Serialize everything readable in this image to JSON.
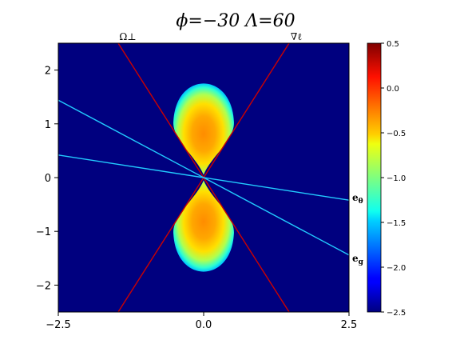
{
  "chart_data": {
    "type": "heatmap",
    "title": "ϕ=−30   Λ=60",
    "xlabel": "",
    "ylabel": "",
    "xlim": [
      -2.5,
      2.5
    ],
    "ylim": [
      -2.5,
      2.5
    ],
    "x_ticks": [
      "−2.5",
      "0.0",
      "2.5"
    ],
    "y_ticks": [
      "−2",
      "−1",
      "0",
      "1",
      "2"
    ],
    "colormap": "jet",
    "colorbar": {
      "range": [
        -2.5,
        0.5
      ],
      "ticks": [
        "0.5",
        "0.0",
        "−0.5",
        "−1.0",
        "−1.5",
        "−2.0",
        "−2.5"
      ]
    },
    "background_value": -2.5,
    "lobes": [
      {
        "center_x": 0.0,
        "center_y": 0.8,
        "peak_value": 0.2,
        "extent_y": [
          0.05,
          1.75
        ],
        "half_width": 0.52
      },
      {
        "center_x": 0.0,
        "center_y": -0.8,
        "peak_value": 0.2,
        "extent_y": [
          -1.75,
          -0.05
        ],
        "half_width": 0.52
      }
    ],
    "lines": [
      {
        "label": "Ω⊥",
        "color": "#cc0000",
        "direction": "slope -1.7",
        "points": [
          [
            -1.47,
            2.5
          ],
          [
            1.47,
            -2.5
          ]
        ]
      },
      {
        "label": "∇ℓ",
        "color": "#cc0000",
        "direction": "slope 1.7",
        "points": [
          [
            -1.47,
            -2.5
          ],
          [
            1.47,
            2.5
          ]
        ]
      },
      {
        "label": "eθ",
        "color": "#22ccff",
        "points": [
          [
            -2.5,
            0.42
          ],
          [
            2.5,
            -0.42
          ]
        ]
      },
      {
        "label": "eg",
        "color": "#22ccff",
        "points": [
          [
            -2.5,
            1.44
          ],
          [
            2.5,
            -1.44
          ]
        ]
      }
    ],
    "annotations": {
      "omega_perp": "Ω⊥",
      "grad_ell": "∇ℓ",
      "e_theta_base": "e",
      "e_theta_sub": "θ",
      "e_g_base": "e",
      "e_g_sub": "g"
    }
  },
  "colors": {
    "background": "#00007f",
    "line_red": "#cc0000",
    "line_cyan": "#22ccff"
  }
}
